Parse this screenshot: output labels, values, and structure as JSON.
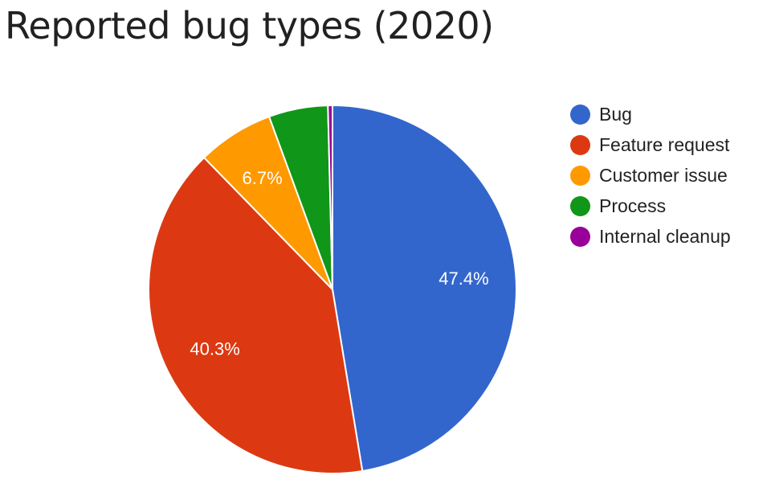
{
  "chart_data": {
    "type": "pie",
    "title": "Reported bug types (2020)",
    "categories": [
      "Bug",
      "Feature request",
      "Customer issue",
      "Process",
      "Internal cleanup"
    ],
    "values": [
      47.4,
      40.3,
      6.7,
      5.2,
      0.4
    ],
    "data_labels": [
      "47.4%",
      "40.3%",
      "6.7%",
      "",
      ""
    ],
    "colors": [
      "#3366cc",
      "#dc3912",
      "#ff9900",
      "#109618",
      "#990099"
    ],
    "start_angle_deg": 0,
    "direction": "clockwise",
    "legend_position": "right"
  }
}
